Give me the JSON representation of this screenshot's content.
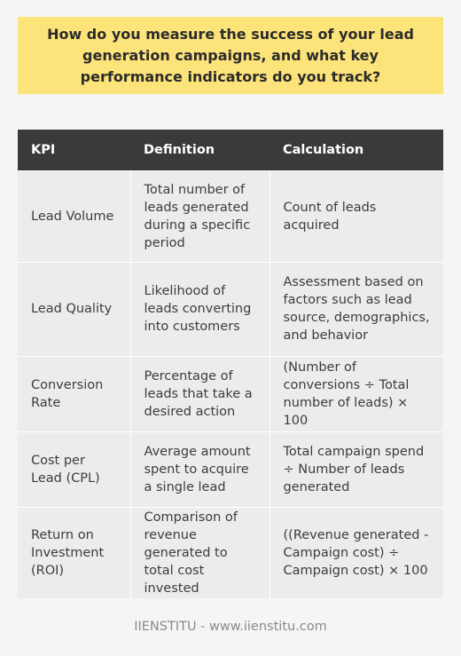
{
  "question": "How do you measure the success of your lead generation campaigns, and what key performance indicators do you track?",
  "table": {
    "headers": [
      "KPI",
      "Definition",
      "Calculation"
    ],
    "rows": [
      [
        "Lead Volume",
        "Total number of leads generated during a specific period",
        "Count of leads acquired"
      ],
      [
        "Lead Quality",
        "Likelihood of leads converting into customers",
        "Assessment based on factors such as lead source, demographics, and behavior"
      ],
      [
        "Conversion Rate",
        "Percentage of leads that take a desired action",
        "(Number of conversions ÷ Total number of leads) × 100"
      ],
      [
        "Cost per Lead (CPL)",
        "Average amount spent to acquire a single lead",
        "Total campaign spend ÷ Number of leads generated"
      ],
      [
        "Return on Investment (ROI)",
        "Comparison of revenue generated to total cost invested",
        "((Revenue generated - Campaign cost) ÷ Campaign cost) × 100"
      ]
    ]
  },
  "footer": "IIENSTITU - www.iienstitu.com"
}
